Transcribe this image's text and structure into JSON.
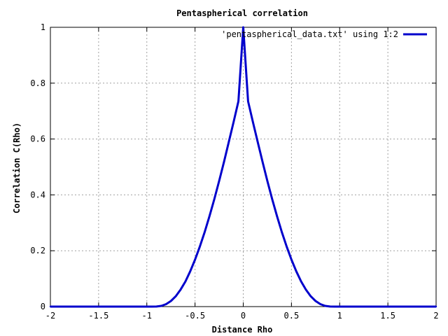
{
  "chart_data": {
    "type": "line",
    "title": "Pentaspherical correlation",
    "xlabel": "Distance Rho",
    "ylabel": "Correlation C(Rho)",
    "xlim": [
      -2,
      2
    ],
    "ylim": [
      0,
      1
    ],
    "xticks": [
      "-2",
      "-1.5",
      "-1",
      "-0.5",
      "0",
      "0.5",
      "1",
      "1.5",
      "2"
    ],
    "yticks": [
      "0",
      "0.2",
      "0.4",
      "0.6",
      "0.8",
      "1"
    ],
    "grid": true,
    "legend_position": "top-right",
    "series": [
      {
        "name": "'pentaspherical_data.txt' using 1:2",
        "color": "#0000cc",
        "x": [
          -2.0,
          -1.0,
          -0.95,
          -0.9,
          -0.85,
          -0.8,
          -0.75,
          -0.7,
          -0.65,
          -0.6,
          -0.55,
          -0.5,
          -0.45,
          -0.4,
          -0.35,
          -0.3,
          -0.25,
          -0.2,
          -0.15,
          -0.1,
          -0.05,
          0.0,
          0.05,
          0.1,
          0.15,
          0.2,
          0.25,
          0.3,
          0.35,
          0.4,
          0.45,
          0.5,
          0.55,
          0.6,
          0.65,
          0.7,
          0.75,
          0.8,
          0.85,
          0.9,
          0.95,
          1.0,
          2.0
        ],
        "values": [
          0,
          0,
          0.0,
          0.0003,
          0.0026,
          0.0087,
          0.02,
          0.037,
          0.061,
          0.09,
          0.126,
          0.168,
          0.215,
          0.267,
          0.324,
          0.385,
          0.45,
          0.518,
          0.589,
          0.661,
          0.735,
          1.0,
          0.735,
          0.661,
          0.589,
          0.518,
          0.45,
          0.385,
          0.324,
          0.267,
          0.215,
          0.168,
          0.126,
          0.09,
          0.061,
          0.037,
          0.02,
          0.0087,
          0.0026,
          0.0003,
          0.0,
          0,
          0
        ]
      }
    ]
  }
}
